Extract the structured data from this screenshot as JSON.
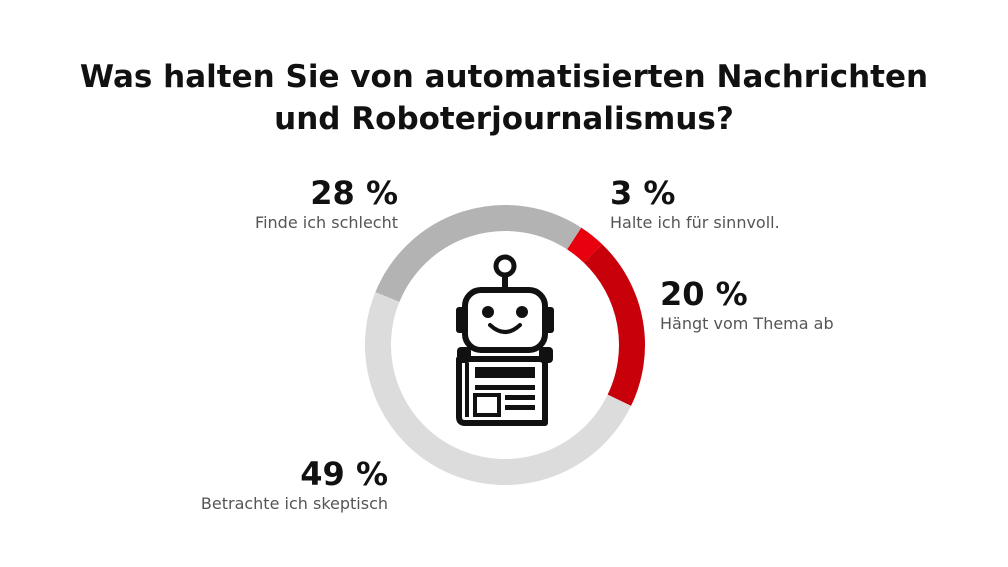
{
  "chart_data": {
    "type": "pie",
    "style": "donut",
    "title": "Was halten Sie von automatisierten Nachrichten und Roboterjournalismus?",
    "title_lines": [
      "Was halten Sie von automatisierten Nachrichten",
      "und Roboterjournalismus?"
    ],
    "slices": [
      {
        "label": "Halte ich für sinnvoll.",
        "value": 3,
        "display": "3 %",
        "color": "#e8000f"
      },
      {
        "label": "Hängt vom Thema ab",
        "value": 20,
        "display": "20 %",
        "color": "#c8000a"
      },
      {
        "label": "Betrachte ich skeptisch",
        "value": 49,
        "display": "49 %",
        "color": "#dcdcdc"
      },
      {
        "label": "Finde ich schlecht",
        "value": 28,
        "display": "28 %",
        "color": "#b3b3b3"
      }
    ],
    "center_icon": "robot-newspaper-icon"
  }
}
